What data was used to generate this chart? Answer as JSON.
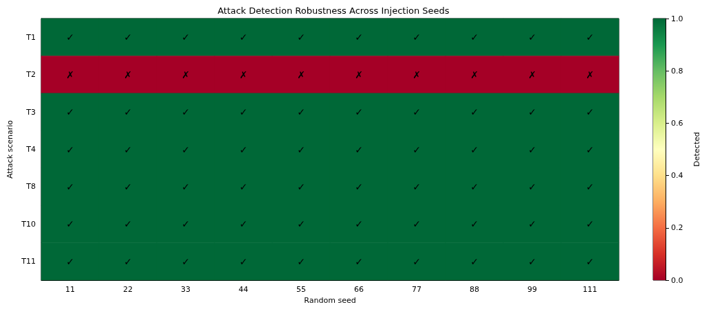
{
  "chart_data": {
    "type": "heatmap",
    "title": "Attack Detection Robustness Across Injection Seeds",
    "xlabel": "Random seed",
    "ylabel": "Attack scenario",
    "clabel": "Detected",
    "categories": [
      "11",
      "22",
      "33",
      "44",
      "55",
      "66",
      "77",
      "88",
      "99",
      "111"
    ],
    "y_categories": [
      "T1",
      "T2",
      "T3",
      "T4",
      "T8",
      "T10",
      "T11"
    ],
    "cells": [
      [
        1,
        1,
        1,
        1,
        1,
        1,
        1,
        1,
        1,
        1
      ],
      [
        0,
        0,
        0,
        0,
        0,
        0,
        0,
        0,
        0,
        0
      ],
      [
        1,
        1,
        1,
        1,
        1,
        1,
        1,
        1,
        1,
        1
      ],
      [
        1,
        1,
        1,
        1,
        1,
        1,
        1,
        1,
        1,
        1
      ],
      [
        1,
        1,
        1,
        1,
        1,
        1,
        1,
        1,
        1,
        1
      ],
      [
        1,
        1,
        1,
        1,
        1,
        1,
        1,
        1,
        1,
        1
      ],
      [
        1,
        1,
        1,
        1,
        1,
        1,
        1,
        1,
        1,
        1
      ]
    ],
    "cell_labels": [
      [
        "✓",
        "✓",
        "✓",
        "✓",
        "✓",
        "✓",
        "✓",
        "✓",
        "✓",
        "✓"
      ],
      [
        "✗",
        "✗",
        "✗",
        "✗",
        "✗",
        "✗",
        "✗",
        "✗",
        "✗",
        "✗"
      ],
      [
        "✓",
        "✓",
        "✓",
        "✓",
        "✓",
        "✓",
        "✓",
        "✓",
        "✓",
        "✓"
      ],
      [
        "✓",
        "✓",
        "✓",
        "✓",
        "✓",
        "✓",
        "✓",
        "✓",
        "✓",
        "✓"
      ],
      [
        "✓",
        "✓",
        "✓",
        "✓",
        "✓",
        "✓",
        "✓",
        "✓",
        "✓",
        "✓"
      ],
      [
        "✓",
        "✓",
        "✓",
        "✓",
        "✓",
        "✓",
        "✓",
        "✓",
        "✓",
        "✓"
      ],
      [
        "✓",
        "✓",
        "✓",
        "✓",
        "✓",
        "✓",
        "✓",
        "✓",
        "✓",
        "✓"
      ]
    ],
    "clim": [
      0,
      1
    ],
    "cticks": [
      {
        "value": 0,
        "label": "0.0"
      },
      {
        "value": 0.2,
        "label": "0.2"
      },
      {
        "value": 0.4,
        "label": "0.4"
      },
      {
        "value": 0.6,
        "label": "0.6"
      },
      {
        "value": 0.8,
        "label": "0.8"
      },
      {
        "value": 1,
        "label": "1.0"
      }
    ]
  }
}
